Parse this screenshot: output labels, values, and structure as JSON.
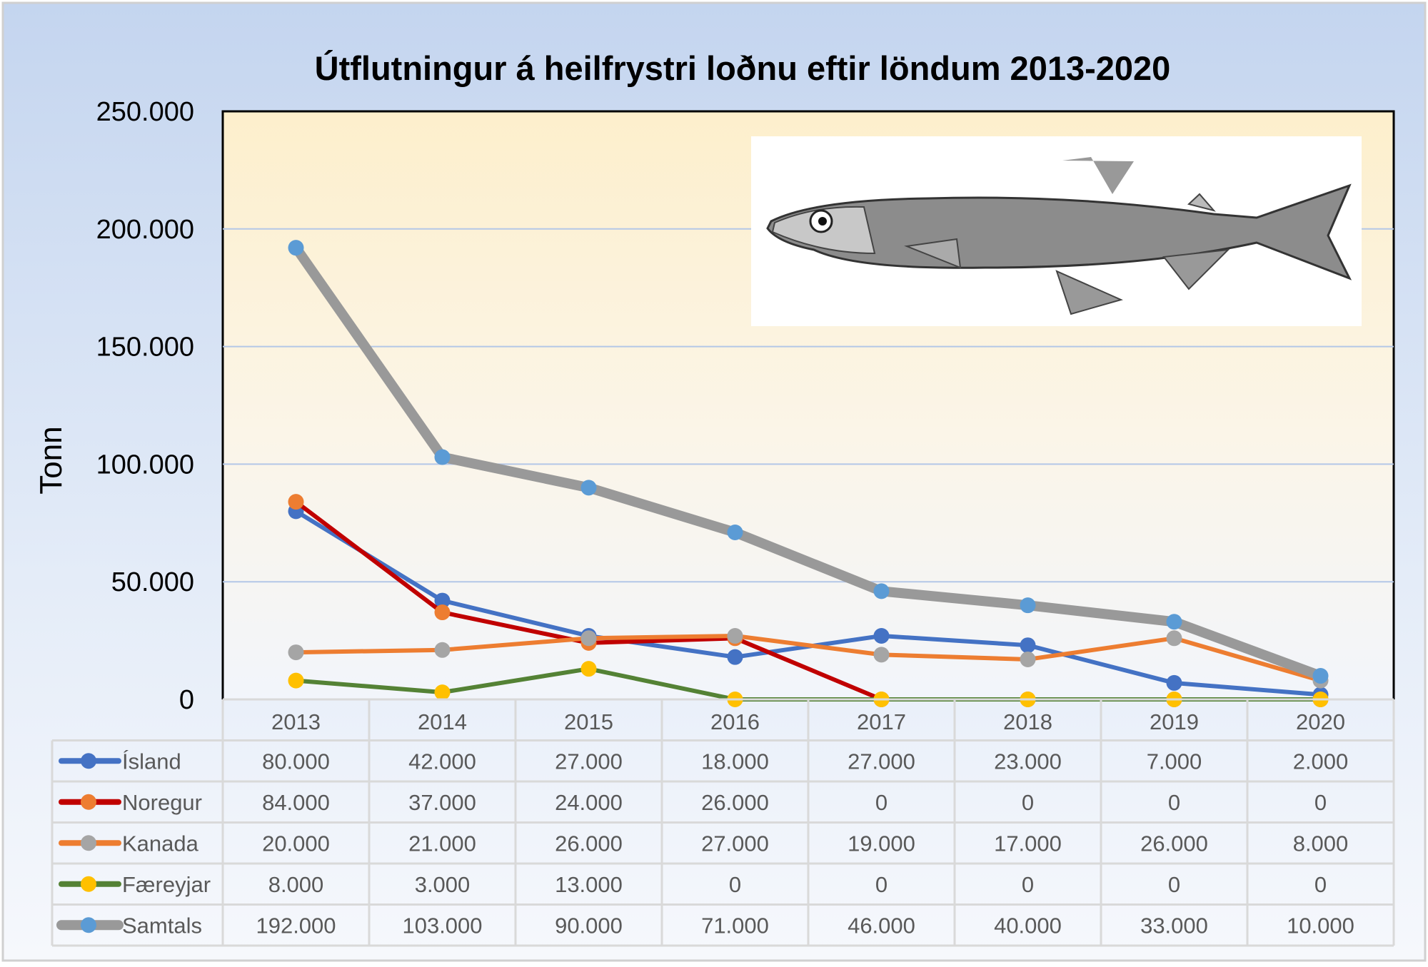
{
  "chart_data": {
    "type": "line",
    "title": "Útflutningur á heilfrystri loðnu eftir löndum 2013-2020",
    "ylabel": "Tonn",
    "xlabel": "",
    "ylim": [
      0,
      250000
    ],
    "yticks": [
      0,
      50000,
      100000,
      150000,
      200000,
      250000
    ],
    "ytick_labels": [
      "0",
      "50.000",
      "100.000",
      "150.000",
      "200.000",
      "250.000"
    ],
    "grid": true,
    "legend": "data-table-bottom",
    "categories": [
      "2013",
      "2014",
      "2015",
      "2016",
      "2017",
      "2018",
      "2019",
      "2020"
    ],
    "series": [
      {
        "name": "Ísland",
        "values": [
          80000,
          42000,
          27000,
          18000,
          27000,
          23000,
          7000,
          2000
        ],
        "labels": [
          "80.000",
          "42.000",
          "27.000",
          "18.000",
          "27.000",
          "23.000",
          "7.000",
          "2.000"
        ],
        "line_color": "#4472c4",
        "marker_color": "#4472c4",
        "width": 6
      },
      {
        "name": "Noregur",
        "values": [
          84000,
          37000,
          24000,
          26000,
          0,
          0,
          0,
          0
        ],
        "labels": [
          "84.000",
          "37.000",
          "24.000",
          "26.000",
          "0",
          "0",
          "0",
          "0"
        ],
        "line_color": "#c00000",
        "marker_color": "#ed7d31",
        "width": 6
      },
      {
        "name": "Kanada",
        "values": [
          20000,
          21000,
          26000,
          27000,
          19000,
          17000,
          26000,
          8000
        ],
        "labels": [
          "20.000",
          "21.000",
          "26.000",
          "27.000",
          "19.000",
          "17.000",
          "26.000",
          "8.000"
        ],
        "line_color": "#ed7d31",
        "marker_color": "#a5a5a5",
        "width": 6
      },
      {
        "name": "Færeyjar",
        "values": [
          8000,
          3000,
          13000,
          0,
          0,
          0,
          0,
          0
        ],
        "labels": [
          "8.000",
          "3.000",
          "13.000",
          "0",
          "0",
          "0",
          "0",
          "0"
        ],
        "line_color": "#548235",
        "marker_color": "#ffc000",
        "width": 6
      },
      {
        "name": "Samtals",
        "values": [
          192000,
          103000,
          90000,
          71000,
          46000,
          40000,
          33000,
          10000
        ],
        "labels": [
          "192.000",
          "103.000",
          "90.000",
          "71.000",
          "46.000",
          "40.000",
          "33.000",
          "10.000"
        ],
        "line_color": "#999999",
        "marker_color": "#5b9bd5",
        "width": 14
      }
    ]
  }
}
